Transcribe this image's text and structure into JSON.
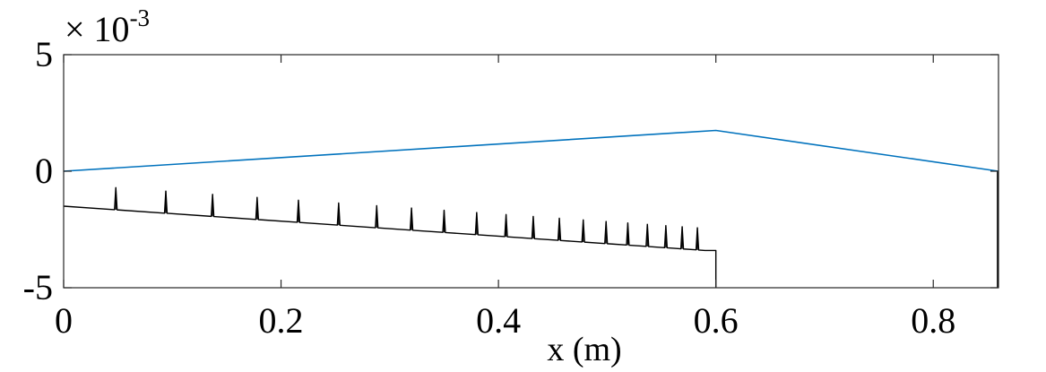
{
  "chart_data": {
    "type": "line",
    "title": "",
    "xlabel": "x (m)",
    "ylabel": "",
    "xlim": [
      0,
      0.86
    ],
    "ylim": [
      -5,
      5
    ],
    "y_multiplier_label": {
      "base": "× 10",
      "exponent": "-3"
    },
    "x_ticks": [
      0,
      0.2,
      0.4,
      0.6,
      0.8
    ],
    "x_tick_labels": [
      "0",
      "0.2",
      "0.4",
      "0.6",
      "0.8"
    ],
    "y_ticks": [
      -5,
      0,
      5
    ],
    "y_tick_labels": [
      "-5",
      "0",
      "5"
    ],
    "grid": false,
    "series": [
      {
        "color": "#0072BD",
        "x": [
          0,
          0.6,
          0.86
        ],
        "y": [
          0,
          1.75,
          0
        ]
      },
      {
        "color": "#000000",
        "baseline": {
          "x": [
            0,
            0.59
          ],
          "y": [
            -1.5,
            -3.4
          ]
        },
        "step": {
          "x": [
            0.59,
            0.6,
            0.6
          ],
          "y": [
            -3.4,
            -3.4,
            -5
          ]
        },
        "end_edge": {
          "x": 0.86,
          "y": [
            -5,
            0
          ]
        },
        "spike_x": [
          0.048,
          0.094,
          0.137,
          0.178,
          0.216,
          0.253,
          0.288,
          0.32,
          0.35,
          0.38,
          0.407,
          0.432,
          0.456,
          0.478,
          0.499,
          0.519,
          0.537,
          0.554,
          0.569,
          0.583
        ],
        "spike_height": 0.95
      }
    ]
  }
}
